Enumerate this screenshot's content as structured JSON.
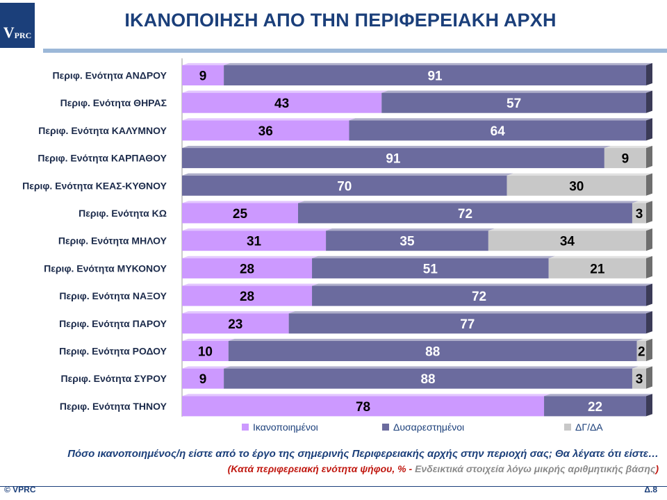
{
  "header": {
    "logo_v": "V",
    "logo_text": "PRC",
    "title": "ΙΚΑΝΟΠΟΙΗΣΗ ΑΠΟ ΤΗΝ ΠΕΡΙΦΕΡΕΙΑΚΗ ΑΡΧΗ"
  },
  "chart_data": {
    "type": "bar",
    "orientation": "horizontal",
    "stacked": true,
    "percent_stacked": true,
    "xlim": [
      0,
      100
    ],
    "categories": [
      "Περιφ. Ενότητα ΑΝΔΡΟΥ",
      "Περιφ. Ενότητα ΘΗΡΑΣ",
      "Περιφ. Ενότητα ΚΑΛΥΜΝΟΥ",
      "Περιφ. Ενότητα ΚΑΡΠΑΘΟΥ",
      "Περιφ. Ενότητα ΚΕΑΣ-ΚΥΘΝΟΥ",
      "Περιφ. Ενότητα ΚΩ",
      "Περιφ. Ενότητα ΜΗΛΟΥ",
      "Περιφ. Ενότητα ΜΥΚΟΝΟΥ",
      "Περιφ. Ενότητα ΝΑΞΟΥ",
      "Περιφ. Ενότητα ΠΑΡΟΥ",
      "Περιφ. Ενότητα ΡΟΔΟΥ",
      "Περιφ. Ενότητα ΣΥΡΟΥ",
      "Περιφ. Ενότητα ΤΗΝΟΥ"
    ],
    "series": [
      {
        "name": "Ικανοποιημένοι",
        "color": "#cc99ff",
        "values": [
          9,
          43,
          36,
          0,
          0,
          25,
          31,
          28,
          28,
          23,
          10,
          9,
          78
        ]
      },
      {
        "name": "Δυσαρεστημένοι",
        "color": "#6b6b9e",
        "values": [
          91,
          57,
          64,
          91,
          70,
          72,
          35,
          51,
          72,
          77,
          88,
          88,
          22
        ]
      },
      {
        "name": "ΔΓ/ΔΑ",
        "color": "#c8c8c8",
        "values": [
          0,
          0,
          0,
          9,
          30,
          3,
          34,
          21,
          0,
          0,
          2,
          3,
          0
        ]
      }
    ],
    "legend_position": "bottom",
    "grid": false
  },
  "footer": {
    "question": "Πόσο ικανοποιημένος/η είστε από το έργο της σημερινής Περιφερειακής αρχής στην περιοχή σας; Θα λέγατε ότι είστε…",
    "note_red": "(Κατά περιφερειακή ενότητα ψήφου, % - ",
    "note_grey": "Ενδεικτικά στοιχεία λόγω μικρής αριθμητικής βάσης",
    "note_red_close": ")",
    "copyright": "© VPRC",
    "page": "Δ.8"
  }
}
